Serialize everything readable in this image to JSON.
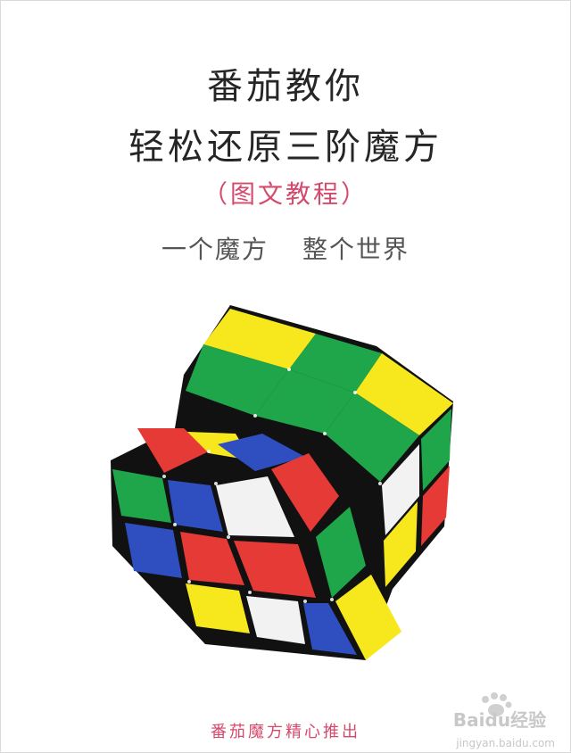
{
  "poster": {
    "title_line1": "番茄教你",
    "title_line2": "轻松还原三阶魔方",
    "subtitle": "（图文教程）",
    "slogan_left": "一个魔方",
    "slogan_right": "整个世界",
    "footer": "番茄魔方精心推出"
  },
  "watermark": {
    "logo_text": "Baidu经验",
    "url": "jingyan.baidu.com"
  },
  "colors": {
    "title": "#262626",
    "accent": "#d44a6c",
    "slogan": "#555555",
    "cube_yellow": "#f7e81e",
    "cube_green": "#1fa64a",
    "cube_red": "#e53a35",
    "cube_blue": "#2f4fc0",
    "cube_white": "#f2f2f2",
    "cube_body": "#111111"
  }
}
